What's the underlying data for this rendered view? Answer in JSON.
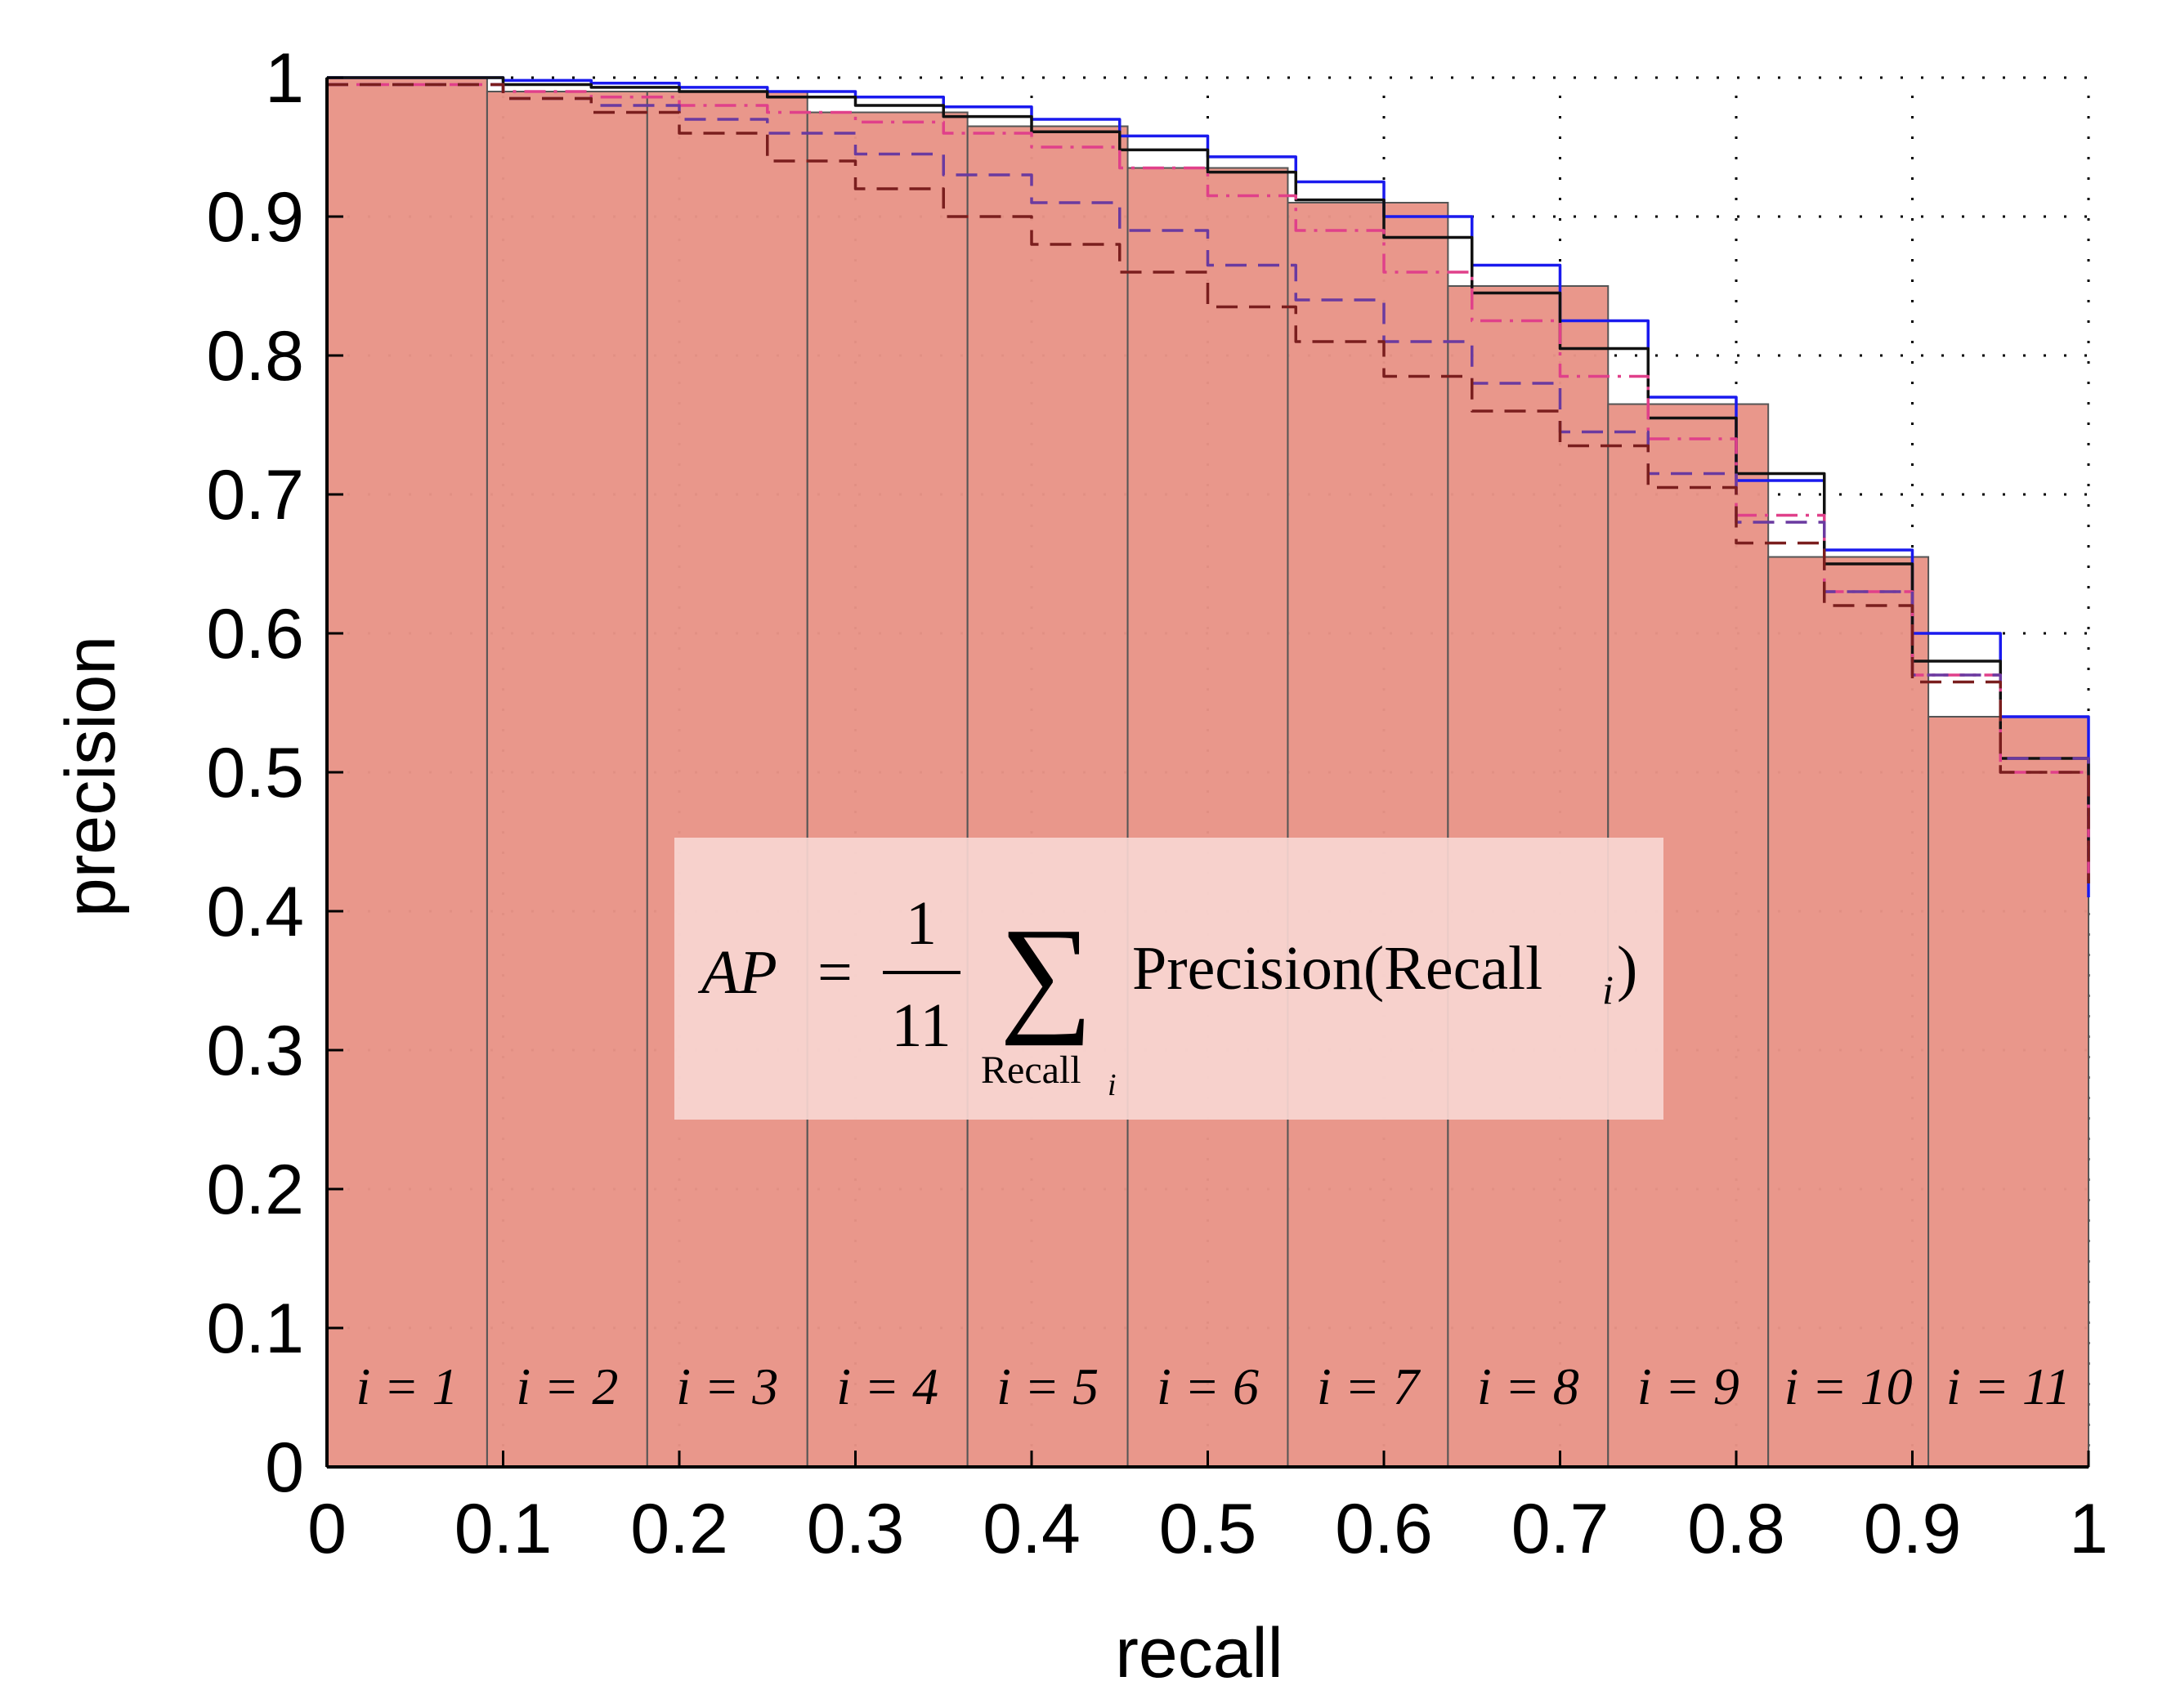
{
  "chart_data": {
    "type": "line",
    "title": "",
    "xlabel": "recall",
    "ylabel": "precision",
    "xlim": [
      0,
      1
    ],
    "ylim": [
      0,
      1
    ],
    "grid": true,
    "x_ticks": [
      "0",
      "0.1",
      "0.2",
      "0.3",
      "0.4",
      "0.5",
      "0.6",
      "0.7",
      "0.8",
      "0.9",
      "1"
    ],
    "y_ticks": [
      "0",
      "0.1",
      "0.2",
      "0.3",
      "0.4",
      "0.5",
      "0.6",
      "0.7",
      "0.8",
      "0.9",
      "1"
    ],
    "bins": {
      "labels": [
        "i = 1",
        "i = 2",
        "i = 3",
        "i = 4",
        "i = 5",
        "i = 6",
        "i = 7",
        "i = 8",
        "i = 9",
        "i = 10",
        "i = 11"
      ],
      "precision": [
        1.0,
        0.99,
        0.99,
        0.975,
        0.965,
        0.935,
        0.91,
        0.85,
        0.765,
        0.655,
        0.54
      ]
    },
    "formula": {
      "lhs": "AP",
      "numerator": "1",
      "denominator": "11",
      "sum_subscript": "Recall",
      "sum_subscript_index": "i",
      "term": "Precision(Recall",
      "term_index": "i",
      "term_close": ")"
    },
    "series": [
      {
        "color": "#1a1aee",
        "dash": "solid",
        "x": [
          0,
          0.1,
          0.15,
          0.2,
          0.25,
          0.3,
          0.35,
          0.4,
          0.45,
          0.5,
          0.55,
          0.6,
          0.65,
          0.7,
          0.75,
          0.8,
          0.85,
          0.9,
          0.95,
          1.0
        ],
        "y": [
          1.0,
          0.998,
          0.996,
          0.993,
          0.99,
          0.986,
          0.979,
          0.97,
          0.958,
          0.943,
          0.925,
          0.9,
          0.865,
          0.825,
          0.77,
          0.71,
          0.66,
          0.6,
          0.54,
          0.41
        ]
      },
      {
        "color": "#111111",
        "dash": "solid",
        "x": [
          0,
          0.1,
          0.15,
          0.2,
          0.25,
          0.3,
          0.35,
          0.4,
          0.45,
          0.5,
          0.55,
          0.6,
          0.65,
          0.7,
          0.75,
          0.8,
          0.85,
          0.9,
          0.95,
          1.0
        ],
        "y": [
          1.0,
          0.995,
          0.993,
          0.99,
          0.986,
          0.98,
          0.972,
          0.961,
          0.948,
          0.932,
          0.912,
          0.885,
          0.845,
          0.805,
          0.755,
          0.715,
          0.65,
          0.58,
          0.51,
          0.42
        ]
      },
      {
        "color": "#e0408a",
        "dash": "dashdot",
        "x": [
          0,
          0.1,
          0.15,
          0.2,
          0.25,
          0.3,
          0.35,
          0.4,
          0.45,
          0.5,
          0.55,
          0.6,
          0.65,
          0.7,
          0.75,
          0.8,
          0.85,
          0.9,
          0.95,
          1.0
        ],
        "y": [
          0.995,
          0.99,
          0.986,
          0.98,
          0.975,
          0.968,
          0.96,
          0.95,
          0.935,
          0.915,
          0.89,
          0.86,
          0.825,
          0.785,
          0.74,
          0.685,
          0.63,
          0.57,
          0.5,
          0.42
        ]
      },
      {
        "color": "#6a3aa0",
        "dash": "dashed",
        "x": [
          0,
          0.1,
          0.15,
          0.2,
          0.25,
          0.3,
          0.35,
          0.4,
          0.45,
          0.5,
          0.55,
          0.6,
          0.65,
          0.7,
          0.75,
          0.8,
          0.85,
          0.9,
          0.95,
          1.0
        ],
        "y": [
          0.995,
          0.985,
          0.98,
          0.97,
          0.96,
          0.945,
          0.93,
          0.91,
          0.89,
          0.865,
          0.84,
          0.81,
          0.78,
          0.745,
          0.715,
          0.68,
          0.63,
          0.57,
          0.51,
          0.42
        ]
      },
      {
        "color": "#7a1e1e",
        "dash": "dashed",
        "x": [
          0,
          0.1,
          0.15,
          0.2,
          0.25,
          0.3,
          0.35,
          0.4,
          0.45,
          0.5,
          0.55,
          0.6,
          0.65,
          0.7,
          0.75,
          0.8,
          0.85,
          0.9,
          0.95,
          1.0
        ],
        "y": [
          0.995,
          0.985,
          0.975,
          0.96,
          0.94,
          0.92,
          0.9,
          0.88,
          0.86,
          0.835,
          0.81,
          0.785,
          0.76,
          0.735,
          0.705,
          0.665,
          0.62,
          0.565,
          0.5,
          0.42
        ]
      }
    ]
  },
  "colors": {
    "bar_fill": "#e89487",
    "bar_stroke": "#555555",
    "formula_box": "#f7d6d1"
  }
}
